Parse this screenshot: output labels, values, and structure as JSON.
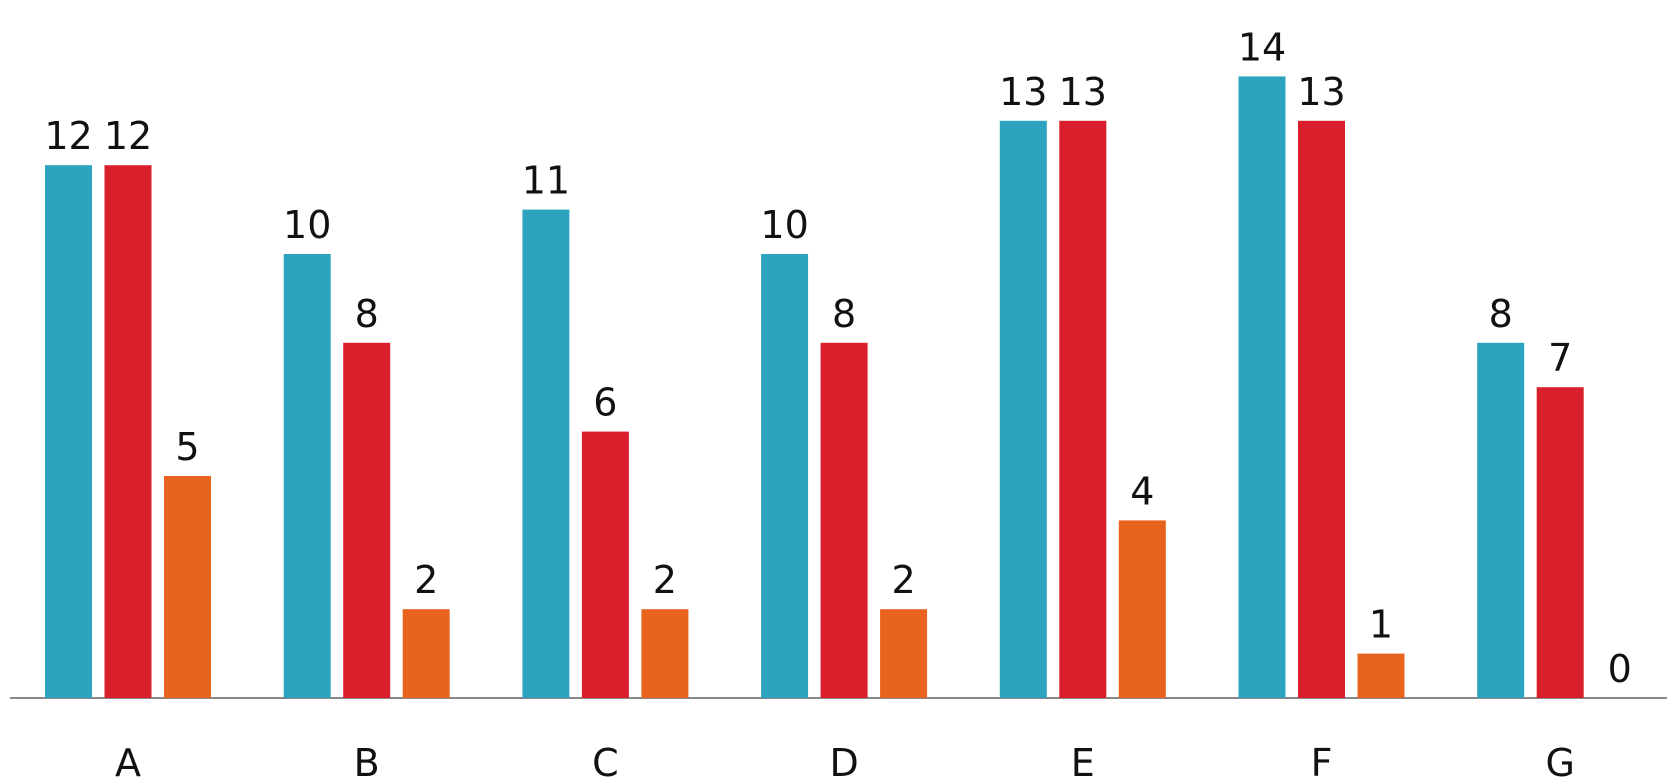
{
  "chart_data": {
    "type": "bar",
    "categories": [
      "A",
      "B",
      "C",
      "D",
      "E",
      "F",
      "G"
    ],
    "series": [
      {
        "color": "#2EA3C0",
        "values": [
          12,
          10,
          11,
          10,
          13,
          14,
          8
        ]
      },
      {
        "color": "#DA1F2C",
        "values": [
          12,
          8,
          6,
          8,
          13,
          13,
          7
        ]
      },
      {
        "color": "#E8641E",
        "values": [
          5,
          2,
          2,
          2,
          4,
          1,
          0
        ]
      }
    ],
    "ylim": [
      0,
      14
    ],
    "grid": false,
    "legend": "none",
    "axis_color": "#888888"
  }
}
